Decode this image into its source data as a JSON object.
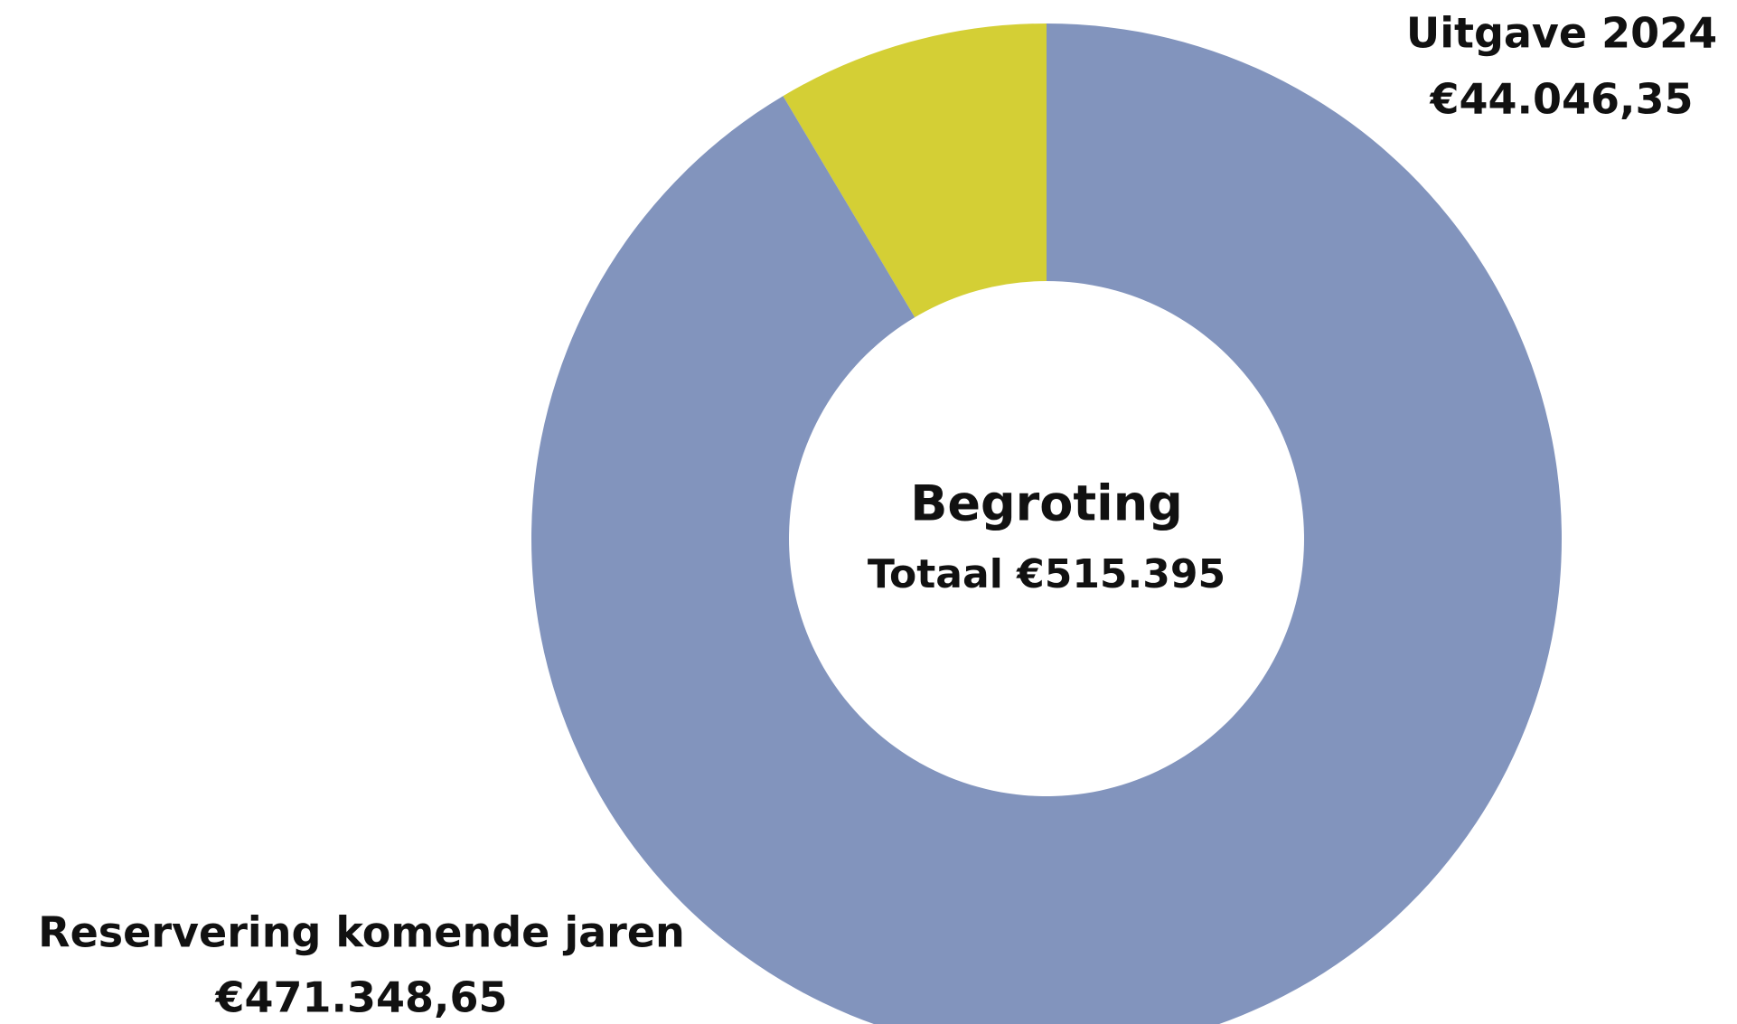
{
  "chart_data": {
    "type": "doughnut",
    "center_title": "Begroting",
    "center_subtitle": "Totaal €515.395",
    "categories": [
      "Uitgave 2024",
      "Reservering komende jaren"
    ],
    "values": [
      44046.35,
      471348.65
    ],
    "value_labels": [
      "€44.046,35",
      "€471.348,65"
    ],
    "colors": [
      "#d4cf35",
      "#8294bd"
    ],
    "direction": "counterclockwise"
  }
}
